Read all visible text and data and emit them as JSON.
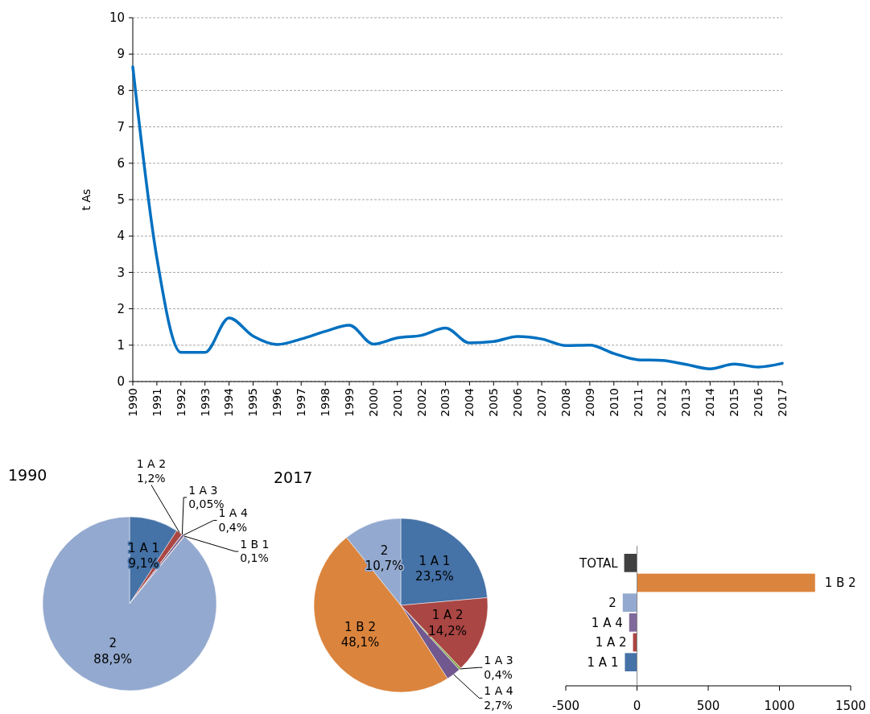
{
  "chart_data": [
    {
      "type": "line",
      "ylabel": "t As",
      "x": [
        1990,
        1991,
        1992,
        1993,
        1994,
        1995,
        1996,
        1997,
        1998,
        1999,
        2000,
        2001,
        2002,
        2003,
        2004,
        2005,
        2006,
        2007,
        2008,
        2009,
        2010,
        2011,
        2012,
        2013,
        2014,
        2015,
        2016,
        2017
      ],
      "series": [
        {
          "color": "#0070c0",
          "values": [
            8.65,
            3.4,
            0.8,
            0.8,
            1.75,
            1.25,
            1.02,
            1.17,
            1.38,
            1.55,
            1.03,
            1.2,
            1.27,
            1.47,
            1.06,
            1.1,
            1.24,
            1.17,
            0.99,
            1.0,
            0.77,
            0.6,
            0.58,
            0.47,
            0.35,
            0.48,
            0.4,
            0.5
          ]
        }
      ],
      "xlim": [
        1990,
        2017
      ],
      "xticks": [
        1990,
        1991,
        1992,
        1993,
        1994,
        1995,
        1996,
        1997,
        1998,
        1999,
        2000,
        2001,
        2002,
        2003,
        2004,
        2005,
        2006,
        2007,
        2008,
        2009,
        2010,
        2011,
        2012,
        2013,
        2014,
        2015,
        2016,
        2017
      ],
      "ylim": [
        0,
        10
      ],
      "yticks": [
        0,
        1,
        2,
        3,
        4,
        5,
        6,
        7,
        8,
        9,
        10
      ],
      "grid": "y",
      "marker": "none",
      "line_style": "solid"
    },
    {
      "type": "pie",
      "title": "1990",
      "categories": [
        "1 A 1",
        "1 A 2",
        "1 A 3",
        "1 A 4",
        "1 B 1",
        "2"
      ],
      "values": [
        9.1,
        1.2,
        0.05,
        0.4,
        0.1,
        88.9
      ],
      "colors": [
        "#4572a7",
        "#aa4643",
        "#89a54e",
        "#71588f",
        "#db843d",
        "#93a9cf"
      ],
      "value_labels": [
        "9,1%",
        "1,2%",
        "0,05%",
        "0,4%",
        "0,1%",
        "88,9%"
      ]
    },
    {
      "type": "pie",
      "title": "2017",
      "categories": [
        "1 A 1",
        "1 A 2",
        "1 A 3",
        "1 A 4",
        "1 B 2",
        "2"
      ],
      "values": [
        23.5,
        14.2,
        0.4,
        2.7,
        48.1,
        10.7
      ],
      "colors": [
        "#4572a7",
        "#aa4643",
        "#89a54e",
        "#71588f",
        "#db843d",
        "#93a9cf"
      ],
      "value_labels": [
        "23,5%",
        "14,2%",
        "0,4%",
        "2,7%",
        "48,1%",
        "10,7%"
      ]
    },
    {
      "type": "bar",
      "orientation": "horizontal",
      "categories": [
        "TOTAL",
        "1 B 2",
        "2",
        "1 A 4",
        "1 A 2",
        "1 A 1"
      ],
      "values": [
        -90,
        1250,
        -100,
        -55,
        -28,
        -85
      ],
      "colors": [
        "#404040",
        "#db843d",
        "#93a9cf",
        "#80699b",
        "#aa4643",
        "#4572a7"
      ],
      "xlim": [
        -500,
        1500
      ],
      "xticks": [
        -500,
        0,
        500,
        1000,
        1500
      ]
    }
  ]
}
